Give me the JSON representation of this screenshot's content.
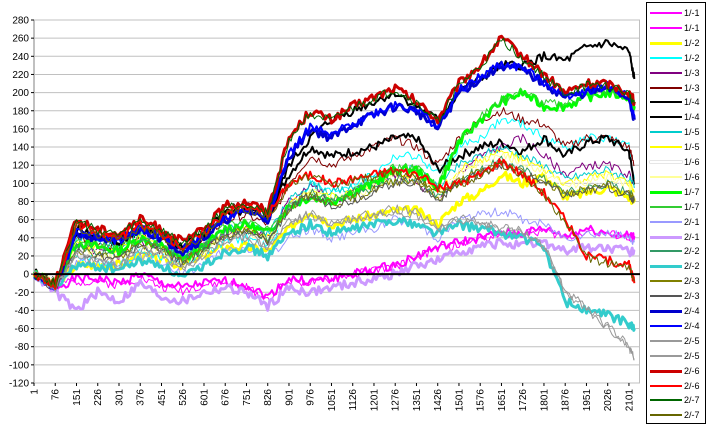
{
  "chart_data": {
    "type": "line",
    "title": "",
    "xlabel": "",
    "ylabel": "",
    "ylim": [
      -120,
      280
    ],
    "y_ticks": [
      280,
      260,
      240,
      220,
      200,
      180,
      160,
      140,
      120,
      100,
      80,
      60,
      40,
      20,
      0,
      -20,
      -40,
      -60,
      -80,
      -100,
      -120
    ],
    "xlim": [
      1,
      2140
    ],
    "x_ticks": [
      1,
      76,
      151,
      226,
      301,
      376,
      451,
      526,
      601,
      676,
      751,
      826,
      901,
      976,
      1051,
      1126,
      1201,
      1276,
      1351,
      1426,
      1501,
      1576,
      1651,
      1726,
      1801,
      1876,
      1951,
      2026,
      2101
    ],
    "grid": true,
    "legend_position": "right",
    "x": [
      1,
      76,
      151,
      226,
      301,
      376,
      451,
      526,
      601,
      676,
      751,
      826,
      901,
      976,
      1051,
      1126,
      1201,
      1276,
      1351,
      1426,
      1501,
      1576,
      1651,
      1726,
      1801,
      1876,
      1951,
      2026,
      2101,
      2120
    ],
    "series": [
      {
        "name": "1/-1",
        "color": "#ff00ff",
        "width": 2,
        "values": [
          0,
          -15,
          -5,
          -5,
          -10,
          0,
          -10,
          -15,
          -10,
          -8,
          -12,
          -25,
          -5,
          -8,
          -5,
          0,
          5,
          10,
          20,
          30,
          35,
          40,
          45,
          45,
          50,
          42,
          50,
          45,
          42,
          42
        ]
      },
      {
        "name": "1/-1",
        "color": "#ff00ff",
        "width": 1,
        "values": [
          2,
          -10,
          -8,
          -8,
          -12,
          -4,
          -14,
          -18,
          -12,
          -10,
          -15,
          -28,
          -6,
          -10,
          -6,
          0,
          4,
          8,
          18,
          28,
          32,
          38,
          44,
          44,
          48,
          40,
          48,
          44,
          40,
          40
        ]
      },
      {
        "name": "1/-2",
        "color": "#ffff00",
        "width": 3,
        "values": [
          0,
          -10,
          10,
          10,
          10,
          20,
          15,
          10,
          20,
          30,
          30,
          25,
          50,
          70,
          55,
          60,
          65,
          70,
          70,
          55,
          80,
          90,
          110,
          100,
          110,
          85,
          90,
          95,
          85,
          80
        ]
      },
      {
        "name": "1/-2",
        "color": "#00ffff",
        "width": 1,
        "values": [
          0,
          -8,
          20,
          15,
          10,
          25,
          20,
          10,
          25,
          35,
          40,
          30,
          70,
          100,
          90,
          100,
          110,
          130,
          130,
          110,
          140,
          150,
          170,
          165,
          150,
          140,
          150,
          150,
          140,
          105
        ]
      },
      {
        "name": "1/-3",
        "color": "#800080",
        "width": 1,
        "values": [
          0,
          -15,
          30,
          25,
          20,
          35,
          30,
          15,
          30,
          45,
          50,
          40,
          80,
          100,
          80,
          90,
          100,
          110,
          100,
          80,
          110,
          130,
          140,
          150,
          130,
          110,
          120,
          120,
          110,
          100
        ]
      },
      {
        "name": "1/-3",
        "color": "#800000",
        "width": 1,
        "values": [
          0,
          -12,
          40,
          35,
          30,
          45,
          40,
          25,
          40,
          60,
          65,
          55,
          100,
          130,
          120,
          130,
          140,
          150,
          140,
          120,
          150,
          170,
          180,
          170,
          165,
          140,
          150,
          150,
          140,
          120
        ]
      },
      {
        "name": "1/-4",
        "color": "#000000",
        "width": 2,
        "values": [
          0,
          -10,
          50,
          40,
          35,
          55,
          45,
          30,
          45,
          70,
          75,
          65,
          110,
          140,
          130,
          135,
          140,
          150,
          150,
          115,
          130,
          140,
          145,
          135,
          150,
          130,
          145,
          150,
          135,
          100
        ]
      },
      {
        "name": "1/-4",
        "color": "#000000",
        "width": 2,
        "values": [
          2,
          -8,
          45,
          38,
          32,
          50,
          42,
          28,
          42,
          65,
          70,
          60,
          120,
          150,
          170,
          180,
          190,
          200,
          185,
          170,
          200,
          215,
          230,
          230,
          240,
          235,
          250,
          255,
          245,
          215
        ]
      },
      {
        "name": "1/-5",
        "color": "#00cccc",
        "width": 1,
        "values": [
          0,
          -10,
          40,
          35,
          30,
          45,
          35,
          20,
          35,
          50,
          55,
          45,
          80,
          100,
          90,
          95,
          105,
          115,
          115,
          95,
          120,
          130,
          140,
          130,
          120,
          105,
          110,
          115,
          105,
          95
        ]
      },
      {
        "name": "1/-5",
        "color": "#ffff00",
        "width": 1,
        "values": [
          0,
          -8,
          35,
          30,
          25,
          40,
          30,
          15,
          30,
          45,
          50,
          40,
          75,
          95,
          85,
          90,
          100,
          110,
          110,
          90,
          115,
          125,
          135,
          125,
          115,
          100,
          105,
          110,
          100,
          90
        ]
      },
      {
        "name": "1/-6",
        "color": "#ffffff",
        "width": 1,
        "values": [
          0,
          -5,
          25,
          20,
          15,
          30,
          25,
          10,
          25,
          40,
          45,
          35,
          70,
          90,
          80,
          85,
          95,
          105,
          105,
          85,
          110,
          120,
          130,
          120,
          110,
          95,
          100,
          105,
          95,
          85
        ]
      },
      {
        "name": "1/-6",
        "color": "#ffff99",
        "width": 1,
        "values": [
          0,
          -6,
          28,
          22,
          18,
          32,
          26,
          12,
          26,
          42,
          47,
          37,
          72,
          92,
          82,
          87,
          97,
          107,
          107,
          87,
          112,
          122,
          132,
          122,
          112,
          97,
          102,
          107,
          97,
          87
        ]
      },
      {
        "name": "1/-7",
        "color": "#00ff00",
        "width": 3,
        "values": [
          0,
          -10,
          35,
          30,
          25,
          40,
          30,
          15,
          30,
          50,
          55,
          45,
          75,
          85,
          80,
          90,
          100,
          115,
          115,
          95,
          145,
          170,
          190,
          200,
          185,
          185,
          195,
          200,
          195,
          185
        ]
      },
      {
        "name": "1/-7",
        "color": "#33cc33",
        "width": 1,
        "values": [
          0,
          -12,
          38,
          32,
          28,
          42,
          32,
          18,
          32,
          52,
          58,
          48,
          78,
          88,
          82,
          92,
          102,
          118,
          118,
          98,
          148,
          172,
          192,
          202,
          188,
          188,
          198,
          202,
          198,
          188
        ]
      },
      {
        "name": "2/-1",
        "color": "#9999ff",
        "width": 1,
        "values": [
          0,
          -15,
          15,
          12,
          8,
          18,
          12,
          0,
          12,
          25,
          28,
          18,
          40,
          50,
          40,
          45,
          50,
          60,
          55,
          40,
          60,
          65,
          70,
          60,
          55,
          40,
          45,
          45,
          40,
          35
        ]
      },
      {
        "name": "2/-1",
        "color": "#cc99ff",
        "width": 3,
        "values": [
          0,
          -20,
          -40,
          -20,
          -30,
          -10,
          -25,
          -30,
          -20,
          -15,
          -20,
          -35,
          -15,
          -20,
          -15,
          -10,
          -5,
          0,
          10,
          15,
          25,
          30,
          35,
          30,
          35,
          25,
          30,
          28,
          25,
          25
        ]
      },
      {
        "name": "2/-2",
        "color": "#339966",
        "width": 1,
        "values": [
          0,
          -12,
          30,
          25,
          20,
          35,
          30,
          15,
          30,
          45,
          50,
          40,
          75,
          90,
          80,
          85,
          95,
          105,
          105,
          85,
          105,
          115,
          125,
          115,
          105,
          90,
          95,
          100,
          90,
          85
        ]
      },
      {
        "name": "2/-2",
        "color": "#33cccc",
        "width": 3,
        "values": [
          0,
          -15,
          10,
          8,
          5,
          15,
          10,
          -5,
          10,
          25,
          30,
          20,
          45,
          55,
          45,
          50,
          55,
          60,
          55,
          45,
          55,
          50,
          45,
          40,
          30,
          -30,
          -40,
          -45,
          -55,
          -60
        ]
      },
      {
        "name": "2/-3",
        "color": "#808000",
        "width": 1,
        "values": [
          0,
          -14,
          28,
          22,
          18,
          33,
          28,
          13,
          28,
          43,
          48,
          38,
          73,
          88,
          78,
          83,
          93,
          103,
          103,
          83,
          103,
          113,
          123,
          113,
          103,
          88,
          93,
          98,
          88,
          83
        ]
      },
      {
        "name": "2/-3",
        "color": "#555555",
        "width": 1,
        "values": [
          0,
          -16,
          26,
          20,
          16,
          31,
          26,
          11,
          26,
          41,
          46,
          36,
          71,
          86,
          76,
          81,
          91,
          101,
          101,
          81,
          101,
          111,
          121,
          111,
          101,
          86,
          91,
          96,
          86,
          81
        ]
      },
      {
        "name": "2/-4",
        "color": "#0000cc",
        "width": 3,
        "values": [
          0,
          -15,
          45,
          40,
          35,
          50,
          40,
          25,
          40,
          60,
          70,
          60,
          130,
          160,
          150,
          165,
          175,
          185,
          180,
          160,
          200,
          215,
          230,
          225,
          210,
          195,
          200,
          205,
          195,
          170
        ]
      },
      {
        "name": "2/-4",
        "color": "#0000ff",
        "width": 2,
        "values": [
          0,
          -13,
          47,
          42,
          37,
          52,
          42,
          27,
          42,
          62,
          72,
          62,
          132,
          162,
          152,
          167,
          177,
          187,
          182,
          162,
          202,
          217,
          232,
          227,
          212,
          197,
          202,
          207,
          197,
          172
        ]
      },
      {
        "name": "2/-5",
        "color": "#999999",
        "width": 1,
        "values": [
          0,
          -15,
          20,
          15,
          10,
          25,
          20,
          5,
          20,
          35,
          40,
          30,
          55,
          65,
          55,
          60,
          65,
          70,
          65,
          50,
          60,
          55,
          50,
          45,
          30,
          -20,
          -40,
          -60,
          -80,
          -95
        ]
      },
      {
        "name": "2/-5",
        "color": "#999999",
        "width": 1,
        "values": [
          0,
          -14,
          22,
          17,
          12,
          27,
          22,
          7,
          22,
          37,
          42,
          32,
          57,
          67,
          57,
          62,
          67,
          72,
          67,
          52,
          62,
          57,
          52,
          47,
          32,
          -18,
          -38,
          -58,
          -78,
          -93
        ]
      },
      {
        "name": "2/-6",
        "color": "#cc0000",
        "width": 3,
        "values": [
          0,
          -10,
          60,
          50,
          45,
          60,
          50,
          35,
          50,
          75,
          80,
          70,
          150,
          180,
          170,
          185,
          195,
          205,
          190,
          170,
          210,
          230,
          260,
          240,
          220,
          200,
          210,
          210,
          200,
          190
        ]
      },
      {
        "name": "2/-6",
        "color": "#ff0000",
        "width": 2,
        "values": [
          0,
          -12,
          55,
          45,
          40,
          55,
          45,
          30,
          45,
          70,
          75,
          65,
          100,
          110,
          100,
          105,
          110,
          115,
          110,
          95,
          100,
          110,
          125,
          110,
          90,
          60,
          20,
          15,
          10,
          -10
        ]
      },
      {
        "name": "2/-7",
        "color": "#006600",
        "width": 1,
        "values": [
          0,
          -10,
          58,
          48,
          43,
          58,
          48,
          33,
          48,
          73,
          78,
          68,
          148,
          178,
          168,
          183,
          193,
          203,
          188,
          168,
          208,
          228,
          258,
          238,
          218,
          198,
          208,
          208,
          198,
          188
        ]
      },
      {
        "name": "2/-7",
        "color": "#666600",
        "width": 1,
        "values": [
          0,
          -11,
          52,
          42,
          38,
          52,
          42,
          28,
          42,
          68,
          72,
          62,
          98,
          108,
          98,
          103,
          108,
          112,
          108,
          92,
          98,
          108,
          122,
          108,
          88,
          58,
          18,
          12,
          8,
          -8
        ]
      }
    ]
  }
}
